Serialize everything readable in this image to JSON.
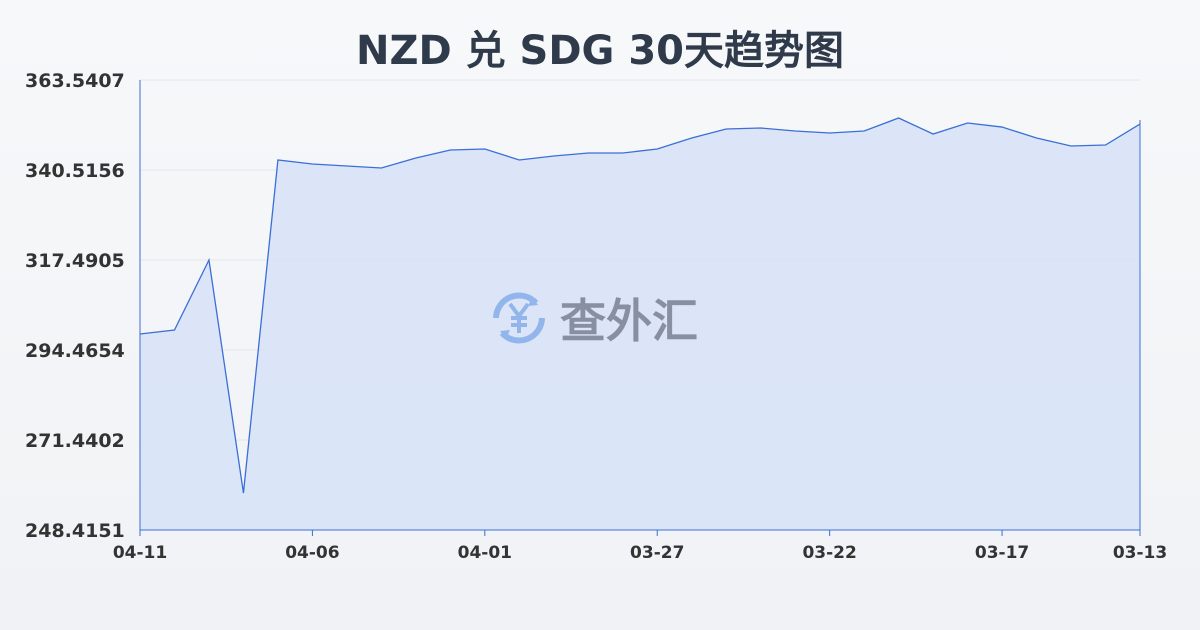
{
  "chart_data": {
    "type": "area",
    "title": "NZD 兑 SDG 30天趋势图",
    "xlabel": "",
    "ylabel": "",
    "x": [
      "04-11",
      "04-10",
      "04-09",
      "04-08",
      "04-07",
      "04-06",
      "04-05",
      "04-04",
      "04-03",
      "04-02",
      "04-01",
      "03-31",
      "03-30",
      "03-29",
      "03-28",
      "03-27",
      "03-26",
      "03-25",
      "03-24",
      "03-23",
      "03-22",
      "03-21",
      "03-20",
      "03-19",
      "03-18",
      "03-17",
      "03-16",
      "03-15",
      "03-14",
      "03-13"
    ],
    "x_tick_labels": [
      "04-11",
      "04-06",
      "04-01",
      "03-27",
      "03-22",
      "03-17",
      "03-13"
    ],
    "y_tick_labels": [
      "363.5407",
      "340.5156",
      "317.4905",
      "294.4654",
      "271.4402",
      "248.4151"
    ],
    "ylim": [
      248.4151,
      363.5407
    ],
    "values": [
      298.56,
      299.58,
      317.49,
      257.88,
      343.07,
      342.05,
      341.54,
      341.03,
      343.58,
      345.63,
      345.89,
      343.07,
      344.1,
      344.86,
      344.86,
      345.89,
      348.7,
      351.0,
      351.26,
      350.49,
      349.98,
      350.49,
      353.82,
      349.72,
      352.54,
      351.5,
      348.7,
      346.65,
      346.91,
      352.28
    ],
    "grid": true,
    "legend": "none",
    "colors": {
      "line": "#3a6fd8",
      "fill": "#d6e2f7"
    }
  },
  "watermark": {
    "text": "查外汇",
    "icon": "yen-exchange-icon"
  }
}
